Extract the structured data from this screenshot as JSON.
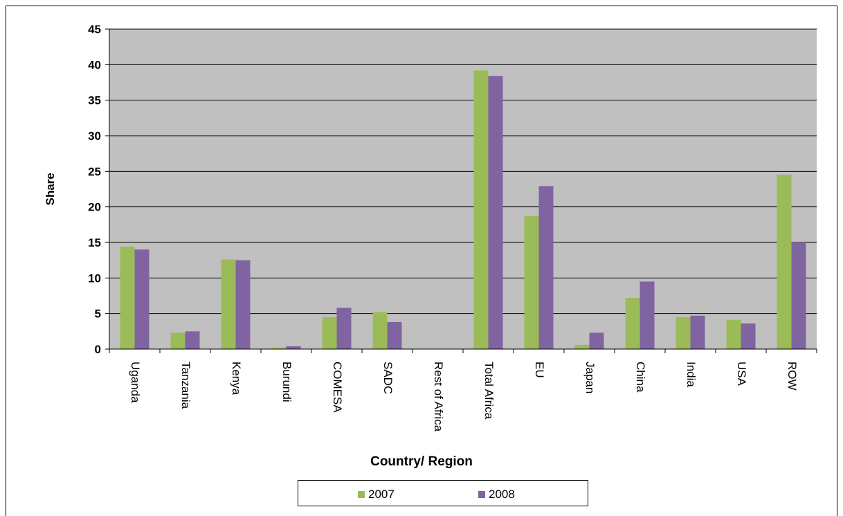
{
  "chart_data": {
    "type": "bar",
    "title": "",
    "xlabel": "Country/ Region",
    "ylabel": "Share",
    "ylim": [
      0,
      45
    ],
    "yticks": [
      0,
      5,
      10,
      15,
      20,
      25,
      30,
      35,
      40,
      45
    ],
    "grid": true,
    "legend_position": "bottom",
    "categories": [
      "Uganda",
      "Tanzania",
      "Kenya",
      "Burundi",
      "COMESA",
      "SADC",
      "Rest of Africa",
      "Total Africa",
      "EU",
      "Japan",
      "China",
      "India",
      "USA",
      "ROW"
    ],
    "series": [
      {
        "name": "2007",
        "color": "#9bbb59",
        "values": [
          14.4,
          2.3,
          12.6,
          0.2,
          4.5,
          5.2,
          0.0,
          39.2,
          18.7,
          0.6,
          7.2,
          4.5,
          4.1,
          24.5
        ]
      },
      {
        "name": "2008",
        "color": "#8064a2",
        "values": [
          14.0,
          2.5,
          12.5,
          0.4,
          5.8,
          3.8,
          0.0,
          38.4,
          22.9,
          2.3,
          9.5,
          4.7,
          3.6,
          15.0
        ]
      }
    ],
    "plot_background": "#c0c0c0"
  }
}
